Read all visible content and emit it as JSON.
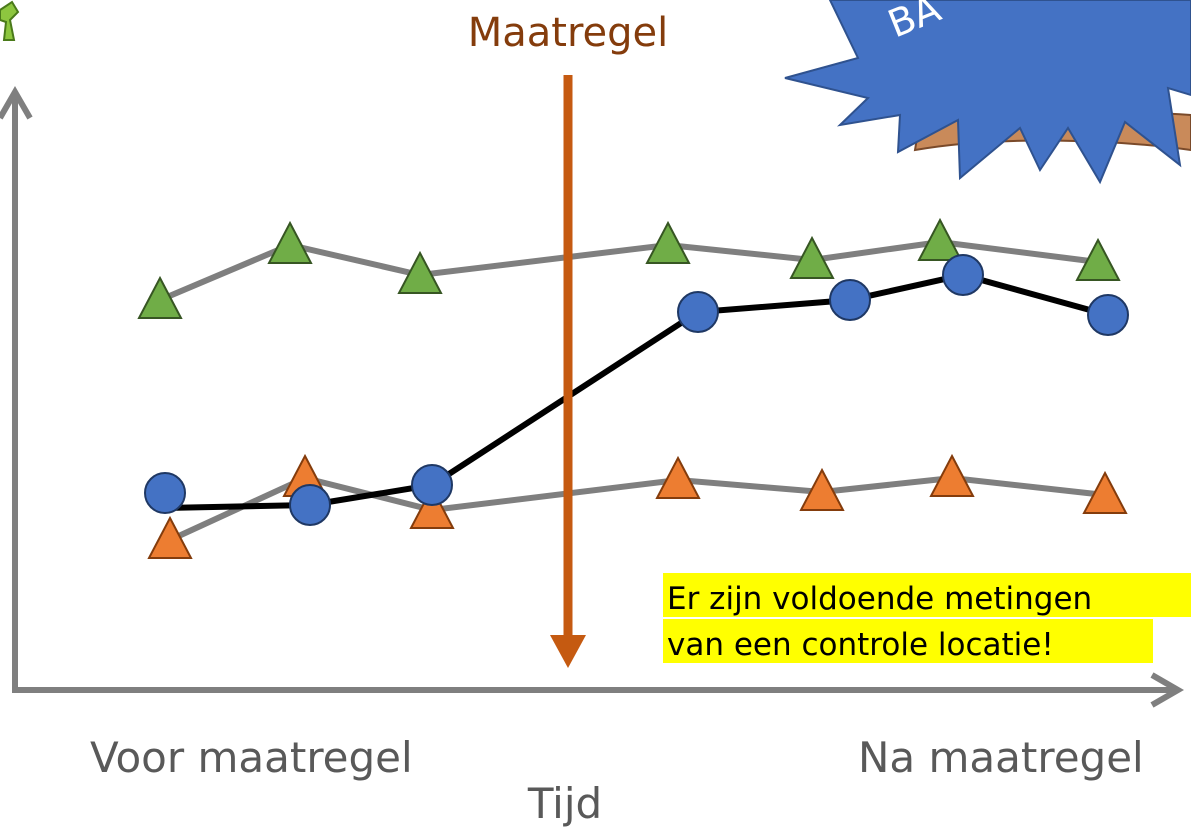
{
  "title": "Maatregel",
  "labels": {
    "before": "Voor maatregel",
    "after": "Na maatregel",
    "x_axis": "Tijd"
  },
  "note": [
    "Er zijn voldoende metingen",
    "van een controle locatie!"
  ],
  "badge": "BA"
}
